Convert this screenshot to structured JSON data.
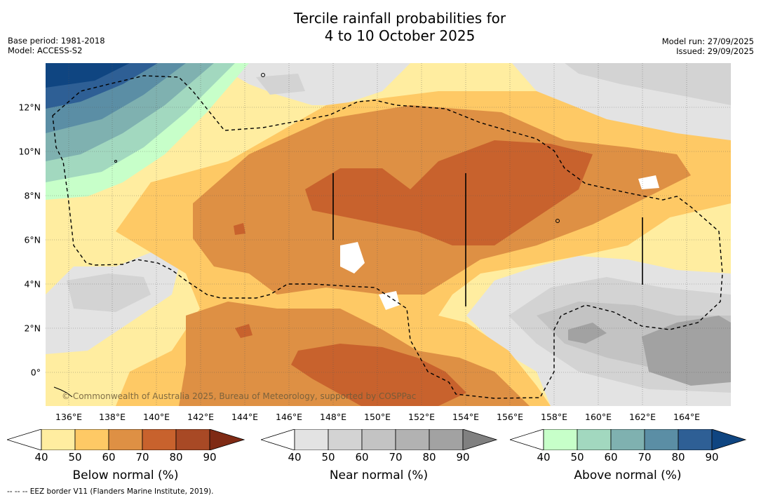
{
  "title": {
    "line1": "Tercile rainfall probabilities for",
    "line2": "4 to 10 October 2025"
  },
  "meta_left": {
    "base_period": "Base period: 1981-2018",
    "model": "Model: ACCESS-S2"
  },
  "meta_right": {
    "model_run": "Model run: 27/09/2025",
    "issued": "Issued: 29/09/2025"
  },
  "map": {
    "x_ticks": [
      "136°E",
      "138°E",
      "140°E",
      "142°E",
      "144°E",
      "146°E",
      "148°E",
      "150°E",
      "152°E",
      "154°E",
      "156°E",
      "158°E",
      "160°E",
      "162°E",
      "164°E"
    ],
    "y_ticks": [
      "12°N",
      "10°N",
      "8°N",
      "6°N",
      "4°N",
      "2°N",
      "0°"
    ],
    "copyright": "© Commonwealth of Australia 2025, Bureau of Meteorology, supported by COSPPac"
  },
  "colorbars": [
    {
      "name": "below",
      "label": "Below normal (%)",
      "ticks": [
        "40",
        "50",
        "60",
        "70",
        "80",
        "90"
      ],
      "colors": [
        "#ffffff",
        "#ffeda0",
        "#fec965",
        "#de9044",
        "#c8622d",
        "#a84925",
        "#7f2a14"
      ]
    },
    {
      "name": "near",
      "label": "Near normal (%)",
      "ticks": [
        "40",
        "50",
        "60",
        "70",
        "80",
        "90"
      ],
      "colors": [
        "#ffffff",
        "#e3e3e3",
        "#d3d3d3",
        "#c3c3c3",
        "#b2b2b2",
        "#a2a2a2",
        "#808080"
      ]
    },
    {
      "name": "above",
      "label": "Above normal (%)",
      "ticks": [
        "40",
        "50",
        "60",
        "70",
        "80",
        "90"
      ],
      "colors": [
        "#ffffff",
        "#c7ffc9",
        "#a2d8bf",
        "#7fb1b0",
        "#5b8ea5",
        "#2e5f95",
        "#0f4581"
      ]
    }
  ],
  "footer": "--  --  -- EEZ border V11 (Flanders Marine Institute, 2019)."
}
